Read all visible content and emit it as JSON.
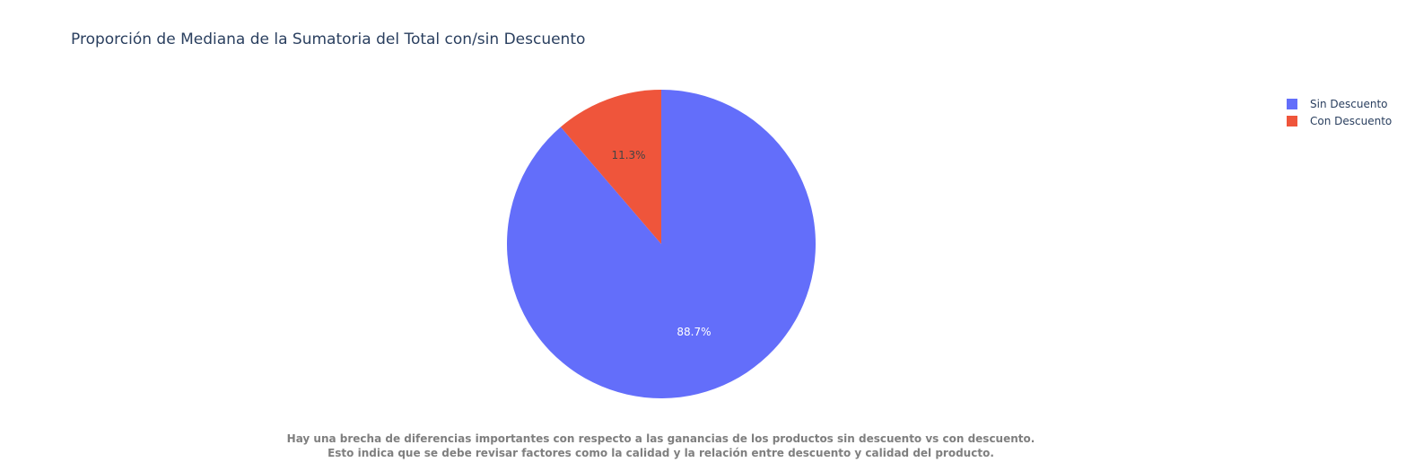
{
  "chart_data": {
    "type": "pie",
    "title": "Proporción de Mediana de la Sumatoria del Total con/sin Descuento",
    "slices": [
      {
        "label": "Sin Descuento",
        "value": 88.7,
        "text": "88.7%",
        "color": "#636efa",
        "text_color": "#ffffff"
      },
      {
        "label": "Con Descuento",
        "value": 11.3,
        "text": "11.3%",
        "color": "#ef553b",
        "text_color": "#444444"
      }
    ],
    "legend_position": "top-right",
    "annotation": [
      "Hay una brecha de diferencias importantes con respecto a las ganancias de los productos sin descuento vs con descuento.",
      "Esto indica que se debe revisar factores como la calidad y la relación entre descuento y calidad del producto."
    ]
  }
}
